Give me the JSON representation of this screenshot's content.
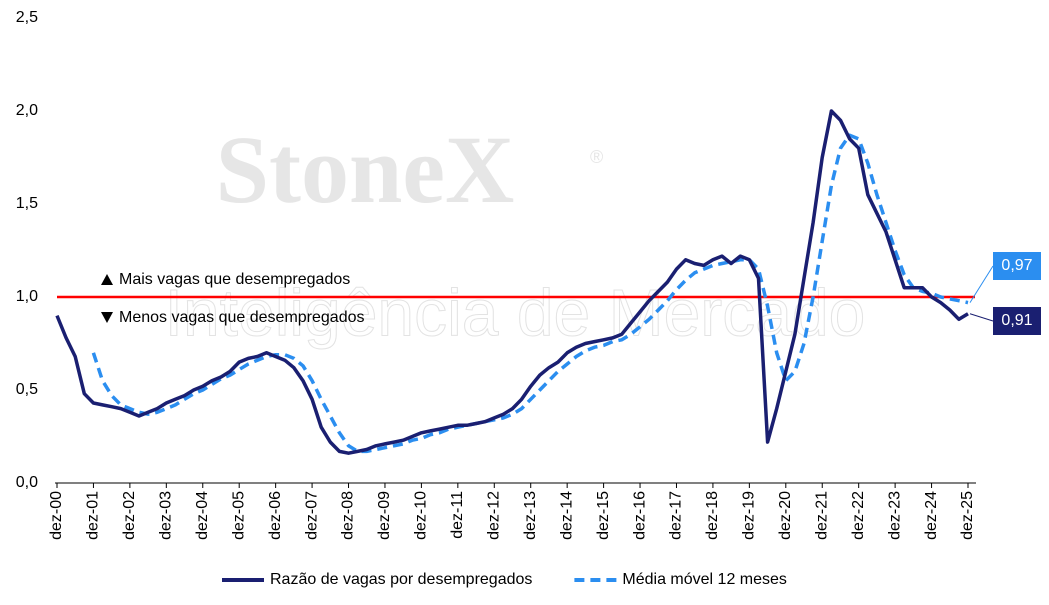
{
  "chart_data": {
    "type": "line",
    "watermark": {
      "brand": "StoneX",
      "mark": "®",
      "subtitle": "Inteligência de Mercado"
    },
    "categories": [
      "dez-00",
      null,
      null,
      null,
      "dez-01",
      null,
      null,
      null,
      "dez-02",
      null,
      null,
      null,
      "dez-03",
      null,
      null,
      null,
      "dez-04",
      null,
      null,
      null,
      "dez-05",
      null,
      null,
      null,
      "dez-06",
      null,
      null,
      null,
      "dez-07",
      null,
      null,
      null,
      "dez-08",
      null,
      null,
      null,
      "dez-09",
      null,
      null,
      null,
      "dez-10",
      null,
      null,
      null,
      "dez-11",
      null,
      null,
      null,
      "dez-12",
      null,
      null,
      null,
      "dez-13",
      null,
      null,
      null,
      "dez-14",
      null,
      null,
      null,
      "dez-15",
      null,
      null,
      null,
      "dez-16",
      null,
      null,
      null,
      "dez-17",
      null,
      null,
      null,
      "dez-18",
      null,
      null,
      null,
      "dez-19",
      null,
      null,
      null,
      "dez-20",
      null,
      null,
      null,
      "dez-21",
      null,
      null,
      null,
      "dez-22",
      null,
      null,
      null,
      "dez-23",
      null,
      null,
      null,
      "dez-24",
      null,
      null,
      null,
      "dez-25"
    ],
    "series": [
      {
        "name": "Razão de vagas por desempregados",
        "color": "#1a1f71",
        "dash": false,
        "values": [
          0.9,
          0.78,
          0.68,
          0.48,
          0.43,
          0.42,
          0.41,
          0.4,
          0.38,
          0.36,
          0.38,
          0.4,
          0.43,
          0.45,
          0.47,
          0.5,
          0.52,
          0.55,
          0.57,
          0.6,
          0.65,
          0.67,
          0.68,
          0.7,
          0.68,
          0.66,
          0.62,
          0.55,
          0.45,
          0.3,
          0.22,
          0.17,
          0.16,
          0.17,
          0.18,
          0.2,
          0.21,
          0.22,
          0.23,
          0.25,
          0.27,
          0.28,
          0.29,
          0.3,
          0.31,
          0.31,
          0.32,
          0.33,
          0.35,
          0.37,
          0.4,
          0.45,
          0.52,
          0.58,
          0.62,
          0.65,
          0.7,
          0.73,
          0.75,
          0.76,
          0.77,
          0.78,
          0.8,
          0.86,
          0.92,
          0.98,
          1.03,
          1.08,
          1.15,
          1.2,
          1.18,
          1.17,
          1.2,
          1.22,
          1.18,
          1.22,
          1.2,
          1.1,
          0.22,
          0.4,
          0.6,
          0.8,
          1.1,
          1.4,
          1.75,
          2.0,
          1.95,
          1.85,
          1.8,
          1.55,
          1.45,
          1.35,
          1.2,
          1.05,
          1.05,
          1.05,
          1.0,
          0.97,
          0.93,
          0.88,
          0.91
        ],
        "value_labels": [
          null,
          null,
          null,
          null,
          null,
          null,
          null,
          null,
          null,
          null,
          null,
          null,
          null,
          null,
          null,
          null,
          null,
          null,
          null,
          null,
          null,
          null,
          null,
          null,
          null,
          null,
          null,
          null,
          null,
          null,
          null,
          null,
          null,
          null,
          null,
          null,
          null,
          null,
          null,
          null,
          null,
          null,
          null,
          null,
          null,
          null,
          null,
          null,
          null,
          null,
          null,
          null,
          null,
          null,
          null,
          null,
          null,
          null,
          null,
          null,
          null,
          null,
          null,
          null,
          null,
          null,
          null,
          null,
          null,
          null,
          null,
          null,
          null,
          null,
          null,
          null,
          null,
          null,
          null,
          null,
          null,
          null,
          null,
          null,
          null,
          null,
          null,
          null,
          null,
          null,
          null,
          null,
          null,
          null,
          null,
          null,
          null,
          null,
          null,
          null,
          "0,91"
        ]
      },
      {
        "name": "Média móvel 12 meses",
        "color": "#2b8ef0",
        "dash": true,
        "values": [
          null,
          null,
          null,
          null,
          0.7,
          0.55,
          0.47,
          0.42,
          0.4,
          0.38,
          0.37,
          0.38,
          0.4,
          0.42,
          0.45,
          0.48,
          0.5,
          0.53,
          0.56,
          0.58,
          0.61,
          0.64,
          0.66,
          0.68,
          0.69,
          0.69,
          0.67,
          0.63,
          0.55,
          0.45,
          0.36,
          0.27,
          0.2,
          0.17,
          0.17,
          0.18,
          0.19,
          0.2,
          0.21,
          0.23,
          0.24,
          0.26,
          0.27,
          0.29,
          0.3,
          0.31,
          0.32,
          0.33,
          0.34,
          0.35,
          0.37,
          0.4,
          0.45,
          0.5,
          0.55,
          0.6,
          0.64,
          0.68,
          0.71,
          0.73,
          0.74,
          0.76,
          0.77,
          0.8,
          0.84,
          0.88,
          0.93,
          0.98,
          1.04,
          1.09,
          1.13,
          1.15,
          1.17,
          1.18,
          1.19,
          1.2,
          1.2,
          1.15,
          0.95,
          0.7,
          0.55,
          0.6,
          0.75,
          1.0,
          1.3,
          1.6,
          1.8,
          1.87,
          1.85,
          1.72,
          1.55,
          1.4,
          1.25,
          1.12,
          1.05,
          1.03,
          1.02,
          1.0,
          0.99,
          0.98,
          0.97
        ],
        "value_labels": [
          null,
          null,
          null,
          null,
          null,
          null,
          null,
          null,
          null,
          null,
          null,
          null,
          null,
          null,
          null,
          null,
          null,
          null,
          null,
          null,
          null,
          null,
          null,
          null,
          null,
          null,
          null,
          null,
          null,
          null,
          null,
          null,
          null,
          null,
          null,
          null,
          null,
          null,
          null,
          null,
          null,
          null,
          null,
          null,
          null,
          null,
          null,
          null,
          null,
          null,
          null,
          null,
          null,
          null,
          null,
          null,
          null,
          null,
          null,
          null,
          null,
          null,
          null,
          null,
          null,
          null,
          null,
          null,
          null,
          null,
          null,
          null,
          null,
          null,
          null,
          null,
          null,
          null,
          null,
          null,
          null,
          null,
          null,
          null,
          null,
          null,
          null,
          null,
          null,
          null,
          null,
          null,
          null,
          null,
          null,
          null,
          null,
          null,
          null,
          null,
          "0,97"
        ]
      }
    ],
    "ylim": [
      0,
      2.5
    ],
    "yticks": [
      {
        "value": 0,
        "label": "0,0"
      },
      {
        "value": 0.5,
        "label": "0,5"
      },
      {
        "value": 1,
        "label": "1,0"
      },
      {
        "value": 1.5,
        "label": "1,5"
      },
      {
        "value": 2,
        "label": "2,0"
      },
      {
        "value": 2.5,
        "label": "2,5"
      }
    ],
    "reference_line": {
      "value": 1,
      "color": "#ff0000"
    },
    "annotations": [
      "Mais vagas que desempregados",
      "Menos vagas que desempregados"
    ]
  }
}
